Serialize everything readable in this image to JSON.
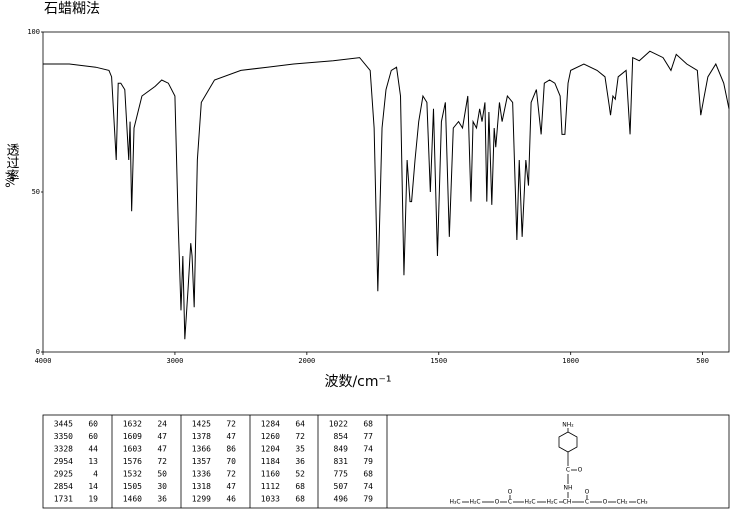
{
  "chart_data": {
    "type": "line",
    "title": "石蜡糊法",
    "xlabel": "波数/cm⁻¹",
    "ylabel": "透过率",
    "ylabel_unit": "%/",
    "xlim": [
      4000,
      400
    ],
    "xticks": [
      4000,
      3000,
      2000,
      1500,
      1000,
      500
    ],
    "x_scale_break": 2000,
    "x_scale_factor_below_break": 2,
    "ylim": [
      0,
      100
    ],
    "yticks": [
      0,
      50,
      100
    ],
    "grid": false,
    "color": "#000000",
    "x": [
      4000,
      3800,
      3600,
      3500,
      3480,
      3445,
      3430,
      3410,
      3380,
      3350,
      3340,
      3328,
      3310,
      3250,
      3150,
      3100,
      3050,
      3000,
      2975,
      2954,
      2940,
      2925,
      2900,
      2880,
      2870,
      2854,
      2830,
      2800,
      2700,
      2500,
      2300,
      2100,
      1900,
      1800,
      1760,
      1745,
      1731,
      1715,
      1700,
      1680,
      1660,
      1645,
      1632,
      1620,
      1609,
      1603,
      1590,
      1576,
      1560,
      1545,
      1532,
      1520,
      1505,
      1490,
      1475,
      1460,
      1445,
      1425,
      1410,
      1390,
      1378,
      1370,
      1357,
      1345,
      1336,
      1325,
      1318,
      1310,
      1299,
      1290,
      1284,
      1270,
      1260,
      1240,
      1220,
      1204,
      1195,
      1184,
      1170,
      1160,
      1150,
      1130,
      1112,
      1100,
      1080,
      1060,
      1040,
      1033,
      1022,
      1010,
      1000,
      950,
      900,
      870,
      854,
      849,
      840,
      831,
      820,
      790,
      775,
      765,
      740,
      700,
      650,
      620,
      600,
      560,
      520,
      507,
      496,
      480,
      450,
      420,
      400
    ],
    "values": [
      90,
      90,
      89,
      88,
      86,
      60,
      84,
      84,
      82,
      60,
      72,
      44,
      70,
      80,
      83,
      85,
      84,
      80,
      40,
      13,
      30,
      4,
      20,
      34,
      30,
      14,
      60,
      78,
      85,
      88,
      89,
      90,
      91,
      92,
      88,
      70,
      19,
      70,
      82,
      88,
      89,
      80,
      24,
      60,
      47,
      47,
      60,
      72,
      80,
      78,
      50,
      76,
      30,
      72,
      78,
      36,
      70,
      72,
      70,
      80,
      47,
      72,
      70,
      76,
      72,
      78,
      47,
      75,
      46,
      70,
      64,
      78,
      72,
      80,
      78,
      35,
      60,
      36,
      60,
      52,
      78,
      82,
      68,
      84,
      85,
      84,
      80,
      68,
      68,
      84,
      88,
      90,
      88,
      86,
      77,
      74,
      80,
      79,
      86,
      88,
      68,
      92,
      91,
      94,
      92,
      88,
      93,
      90,
      88,
      74,
      79,
      86,
      90,
      84,
      76
    ]
  },
  "table": {
    "rows": [
      [
        [
          "3445",
          "60"
        ],
        [
          "1632",
          "24"
        ],
        [
          "1425",
          "72"
        ],
        [
          "1284",
          "64"
        ],
        [
          "1022",
          "68"
        ]
      ],
      [
        [
          "3350",
          "60"
        ],
        [
          "1609",
          "47"
        ],
        [
          "1378",
          "47"
        ],
        [
          "1260",
          "72"
        ],
        [
          "854",
          "77"
        ]
      ],
      [
        [
          "3328",
          "44"
        ],
        [
          "1603",
          "47"
        ],
        [
          "1366",
          "86"
        ],
        [
          "1204",
          "35"
        ],
        [
          "849",
          "74"
        ]
      ],
      [
        [
          "2954",
          "13"
        ],
        [
          "1576",
          "72"
        ],
        [
          "1357",
          "70"
        ],
        [
          "1184",
          "36"
        ],
        [
          "831",
          "79"
        ]
      ],
      [
        [
          "2925",
          "4"
        ],
        [
          "1532",
          "50"
        ],
        [
          "1336",
          "72"
        ],
        [
          "1160",
          "52"
        ],
        [
          "775",
          "68"
        ]
      ],
      [
        [
          "2854",
          "14"
        ],
        [
          "1505",
          "30"
        ],
        [
          "1318",
          "47"
        ],
        [
          "1112",
          "68"
        ],
        [
          "507",
          "74"
        ]
      ],
      [
        [
          "1731",
          "19"
        ],
        [
          "1460",
          "36"
        ],
        [
          "1299",
          "46"
        ],
        [
          "1033",
          "68"
        ],
        [
          "496",
          "79"
        ]
      ]
    ]
  },
  "structure": {
    "atoms": [
      "NH₂",
      "C",
      "O",
      "NH",
      "H₃C",
      "H₂C",
      "O",
      "C",
      "O",
      "H₂C",
      "H₂C",
      "CH",
      "C",
      "O",
      "O",
      "CH₂",
      "CH₃"
    ]
  }
}
